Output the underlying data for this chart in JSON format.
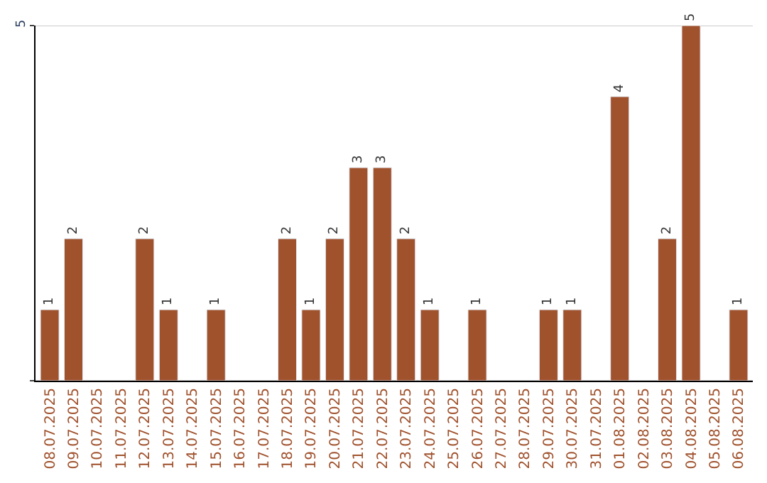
{
  "chart_data": {
    "type": "bar",
    "categories": [
      "08.07.2025",
      "09.07.2025",
      "10.07.2025",
      "11.07.2025",
      "12.07.2025",
      "13.07.2025",
      "14.07.2025",
      "15.07.2025",
      "16.07.2025",
      "17.07.2025",
      "18.07.2025",
      "19.07.2025",
      "20.07.2025",
      "21.07.2025",
      "22.07.2025",
      "23.07.2025",
      "24.07.2025",
      "25.07.2025",
      "26.07.2025",
      "27.07.2025",
      "28.07.2025",
      "29.07.2025",
      "30.07.2025",
      "31.07.2025",
      "01.08.2025",
      "02.08.2025",
      "03.08.2025",
      "04.08.2025",
      "05.08.2025",
      "06.08.2025"
    ],
    "values": [
      1,
      2,
      null,
      null,
      2,
      1,
      null,
      1,
      null,
      null,
      2,
      1,
      2,
      3,
      3,
      2,
      1,
      null,
      1,
      null,
      null,
      1,
      1,
      null,
      4,
      null,
      2,
      5,
      null,
      1
    ],
    "value_labels": [
      "1",
      "2",
      null,
      null,
      "2",
      "1",
      null,
      "1",
      null,
      null,
      "2",
      "1",
      "2",
      "3",
      "3",
      "2",
      "1",
      null,
      "1",
      null,
      null,
      "1",
      "1",
      null,
      "4",
      null,
      "2",
      "5",
      null,
      "1"
    ],
    "color": "#a0522d",
    "ylim": [
      0,
      5
    ],
    "yticks": [
      {
        "value": 0,
        "label": null
      },
      5
    ],
    "grid": "y"
  }
}
